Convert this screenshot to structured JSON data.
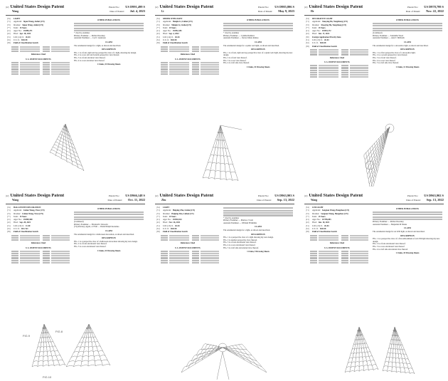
{
  "patents": [
    {
      "kind_label": "United States Design Patent",
      "inventor_surname": "Wang",
      "patent_no_label": "Patent No.:",
      "patent_no": "US D991,499 S",
      "date_label": "Date of Patent:",
      "date": "Jul. 4, 2023",
      "fields": [
        {
          "code": "(54)",
          "key": "",
          "value": "LIGHT"
        },
        {
          "code": "(71)",
          "key": "Applicant:",
          "value": "Sipan Wang, Anhui (CN)"
        },
        {
          "code": "(72)",
          "key": "Inventor:",
          "value": "Sipan Wang, Anhui (CN)"
        },
        {
          "code": "(**)",
          "key": "Term:",
          "value": "15 Years"
        },
        {
          "code": "(21)",
          "key": "Appl. No.:",
          "value": "29/885,371"
        },
        {
          "code": "(22)",
          "key": "Filed:",
          "value": "Apr. 18, 2023"
        },
        {
          "code": "(51)",
          "key": "LOC (14) Cl.",
          "value": "26-04"
        },
        {
          "code": "(52)",
          "key": "U.S. Cl.",
          "value": "D26/28"
        },
        {
          "code": "(58)",
          "key": "",
          "value": "Field of Classification Search"
        }
      ],
      "references_heading": "References Cited",
      "us_docs_heading": "U.S. PATENT DOCUMENTS",
      "other_pubs_heading": "OTHER PUBLICATIONS",
      "examiners": [
        "* cited by examiner",
        "Primary Examiner — Richard Kearney",
        "Assistant Examiner — Cyd C Anderson"
      ],
      "claim_heading": "CLAIM",
      "claim": "The ornamental design for a light, as shown and described.",
      "description_heading": "DESCRIPTION",
      "description": [
        "FIG. 1 is a front, right and top perspective view of a light, showing my design.",
        "FIG. 2 is a rear, left and bottom perspective view thereof.",
        "FIG. 3 is a front elevation view thereof.",
        "FIG. 4 is a rear elevation view thereof."
      ],
      "sheets": "1 Claim, 10 Drawing Sheets",
      "figure_labels": []
    },
    {
      "kind_label": "United States Design Patent",
      "inventor_surname": "Li",
      "patent_no_label": "Patent No.:",
      "patent_no": "US D985,806 S",
      "date_label": "Date of Patent:",
      "date": "May 9, 2023",
      "fields": [
        {
          "code": "(54)",
          "key": "",
          "value": "SPIDER WEB LIGHT"
        },
        {
          "code": "(71)",
          "key": "Applicant:",
          "value": "Meiqin Li, Linhai (CN)"
        },
        {
          "code": "(72)",
          "key": "Inventor:",
          "value": "Meiqin Li, Linhai (CN)"
        },
        {
          "code": "(**)",
          "key": "Term:",
          "value": "15 Years"
        },
        {
          "code": "(21)",
          "key": "Appl. No.:",
          "value": "29/852,183"
        },
        {
          "code": "(22)",
          "key": "Filed:",
          "value": "Sep. 4, 2022"
        },
        {
          "code": "(51)",
          "key": "LOC (14) Cl.",
          "value": "26-04"
        },
        {
          "code": "(52)",
          "key": "U.S. Cl.",
          "value": "D26/28"
        },
        {
          "code": "(58)",
          "key": "",
          "value": "Field of Classification Search"
        }
      ],
      "references_heading": "References Cited",
      "us_docs_heading": "U.S. PATENT DOCUMENTS",
      "other_pubs_heading": "OTHER PUBLICATIONS",
      "examiners": [
        "* cited by examiner",
        "Primary Examiner — Cynthia Ramirez",
        "Assistant Examiner — Xavier Marie Ramos"
      ],
      "claim_heading": "CLAIM",
      "claim": "The ornamental design for a spider web light, as shown and described.",
      "description_heading": "DESCRIPTION",
      "description": [
        "FIG. 1 is a front, right and top perspective view of a spider web light, showing my new design.",
        "FIG. 2 is a front view thereof.",
        "FIG. 3 is a rear view thereof.",
        "FIG. 4 is a left side view thereof."
      ],
      "sheets": "1 Claim, 10 Drawing Sheets",
      "figure_labels": []
    },
    {
      "kind_label": "United States Design Patent",
      "inventor_surname": "He",
      "patent_no_label": "Patent No.:",
      "patent_no": "US D978,799 S",
      "date_label": "Date of Patent:",
      "date": "Nov. 22, 2022",
      "fields": [
        {
          "code": "(54)",
          "key": "",
          "value": "DECORATIVE LIGHT"
        },
        {
          "code": "(71)",
          "key": "Applicant:",
          "value": "Xiaoying He, Yangzhong (CN)"
        },
        {
          "code": "(72)",
          "key": "Inventor:",
          "value": "Xiaoying He, Yangzhong (CN)"
        },
        {
          "code": "(**)",
          "key": "Term:",
          "value": "15 Years"
        },
        {
          "code": "(21)",
          "key": "Appl. No.:",
          "value": "29/843,172"
        },
        {
          "code": "(22)",
          "key": "Filed:",
          "value": "Jun. 17, 2022"
        },
        {
          "code": "(30)",
          "key": "",
          "value": "Foreign Application Priority Data"
        },
        {
          "code": "(51)",
          "key": "LOC (13) Cl.",
          "value": "26-04"
        },
        {
          "code": "(52)",
          "key": "U.S. Cl.",
          "value": "D26/28"
        },
        {
          "code": "(58)",
          "key": "",
          "value": "Field of Classification Search"
        }
      ],
      "references_heading": "References Cited",
      "us_docs_heading": "U.S. PATENT DOCUMENTS",
      "other_pubs_heading": "OTHER PUBLICATIONS",
      "examiners": [
        "(Continued)",
        "Primary Examiner — Samantha Wood",
        "Assistant Examiner — Alan T. Milbrath"
      ],
      "claim_heading": "CLAIM",
      "claim": "The ornamental design for a decorative light, as shown and described.",
      "description_heading": "DESCRIPTION",
      "description": [
        "FIG. 1 is a first perspective view of a decorative light.",
        "FIG. 2 is a second perspective view thereof.",
        "FIG. 3 is a front view thereof.",
        "FIG. 4 is a rear view thereof.",
        "FIG. 5 is a left side view thereof."
      ],
      "sheets": "1 Claim, 12 Drawing Sheets",
      "figure_labels": []
    },
    {
      "kind_label": "United States Design Patent",
      "inventor_surname": "Wang",
      "patent_no_label": "Patent No.:",
      "patent_no": "US D966,148 S",
      "date_label": "Date of Patent:",
      "date": "Oct. 11, 2022",
      "fields": [
        {
          "code": "(54)",
          "key": "",
          "value": "HALLOWEEN DECORATION"
        },
        {
          "code": "(71)",
          "key": "Applicant:",
          "value": "Linlan Wang, Yiwu (CN)"
        },
        {
          "code": "(72)",
          "key": "Inventor:",
          "value": "Linlan Wang, Yiwu (CN)"
        },
        {
          "code": "(**)",
          "key": "Term:",
          "value": "15 Years"
        },
        {
          "code": "(21)",
          "key": "Appl. No.:",
          "value": "29/809,580"
        },
        {
          "code": "(22)",
          "key": "Filed:",
          "value": "Sep. 28, 2021"
        },
        {
          "code": "(51)",
          "key": "LOC (13) Cl.",
          "value": "11-00"
        },
        {
          "code": "(52)",
          "key": "U.S. Cl.",
          "value": "D11/121"
        },
        {
          "code": "(58)",
          "key": "",
          "value": "Field of Classification Search"
        }
      ],
      "references_heading": "References Cited",
      "us_docs_heading": "U.S. PATENT DOCUMENTS",
      "other_pubs_heading": "OTHER PUBLICATIONS",
      "examiners": [
        "(Continued)",
        "Primary Examiner — Elizabeth J Oswecki",
        "(74) Attorney, Agent, or Firm — Daniel Ralph Kostenko"
      ],
      "claim_heading": "CLAIM",
      "claim": "The ornamental design for a halloween decoration, as shown and described.",
      "description_heading": "DESCRIPTION",
      "description": [
        "FIG. 1 is a perspective view of a halloween decoration showing my new design.",
        "FIG. 2 is a front elevational view thereof.",
        "FIG. 3 is a rear elevational view thereof."
      ],
      "sheets": "1 Claim, 10 Drawing Sheets",
      "figure_labels": [
        "FIG.8",
        "FIG.9",
        "FIG.10"
      ]
    },
    {
      "kind_label": "United States Design Patent",
      "inventor_surname": "Zhu",
      "patent_no_label": "Patent No.:",
      "patent_no": "US D963,903 S",
      "date_label": "Date of Patent:",
      "date": "Sep. 13, 2022",
      "fields": [
        {
          "code": "(54)",
          "key": "",
          "value": "LIGHT"
        },
        {
          "code": "(71)",
          "key": "Applicant:",
          "value": "Haiping Zhu, Linhai (CN)"
        },
        {
          "code": "(72)",
          "key": "Inventor:",
          "value": "Haiping Zhu, Linhai (CN)"
        },
        {
          "code": "(**)",
          "key": "Term:",
          "value": "15 Years"
        },
        {
          "code": "(21)",
          "key": "Appl. No.:",
          "value": "29/816,924"
        },
        {
          "code": "(22)",
          "key": "Filed:",
          "value": "Nov. 26, 2021"
        },
        {
          "code": "(51)",
          "key": "LOC (13) Cl.",
          "value": "26-04"
        },
        {
          "code": "(52)",
          "key": "U.S. Cl.",
          "value": "D26/28"
        },
        {
          "code": "(58)",
          "key": "",
          "value": "Field of Classification Search"
        }
      ],
      "references_heading": "References Cited",
      "us_docs_heading": "U.S. PATENT DOCUMENTS",
      "other_pubs_heading": "",
      "examiners": [
        "* cited by examiner",
        "Primary Examiner — Marissa J Cash",
        "Assistant Examiner — William B Mullins"
      ],
      "claim_heading": "CLAIM",
      "claim": "The ornamental design for a light, as shown and described.",
      "description_heading": "DESCRIPTION",
      "description": [
        "FIG. 1 is a perspective view of a light showing my new design.",
        "FIG. 2 is another perspective view thereof.",
        "FIG. 3 is a front elevational view thereof.",
        "FIG. 4 is a rear elevational view thereof.",
        "FIG. 5 is a left side elevational view thereof."
      ],
      "sheets": "1 Claim, 9 Drawing Sheets",
      "figure_labels": []
    },
    {
      "kind_label": "United States Design Patent",
      "inventor_surname": "Wang",
      "patent_no_label": "Patent No.:",
      "patent_no": "US D963,902 S",
      "date_label": "Date of Patent:",
      "date": "Sep. 13, 2022",
      "fields": [
        {
          "code": "(54)",
          "key": "",
          "value": "LED LIGHT"
        },
        {
          "code": "(71)",
          "key": "Applicant:",
          "value": "Songnan Wang, Hangzhou (CN)"
        },
        {
          "code": "(72)",
          "key": "Inventor:",
          "value": "Songnan Wang, Hangzhou (CN)"
        },
        {
          "code": "(**)",
          "key": "Term:",
          "value": "15 Years"
        },
        {
          "code": "(21)",
          "key": "Appl. No.:",
          "value": "29/785,083"
        },
        {
          "code": "(22)",
          "key": "Filed:",
          "value": "Jun. 10, 2021"
        },
        {
          "code": "(51)",
          "key": "LOC (13) Cl.",
          "value": "26-04"
        },
        {
          "code": "(52)",
          "key": "U.S. Cl.",
          "value": "D26/28"
        },
        {
          "code": "(58)",
          "key": "",
          "value": "Field of Classification Search"
        }
      ],
      "references_heading": "References Cited",
      "us_docs_heading": "U.S. PATENT DOCUMENTS",
      "other_pubs_heading": "OTHER PUBLICATIONS",
      "examiners": [
        "Primary Examiner — Richard Kearney",
        "Assistant Examiner — Benjamin M Weeks"
      ],
      "claim_heading": "CLAIM",
      "claim": "The ornamental design for an LED light, as shown and described.",
      "description_heading": "DESCRIPTION",
      "description": [
        "FIG. 1 is a perspective view of a first embodiment of an LED light showing my new design.",
        "FIG. 2 is a front elevational view thereof.",
        "FIG. 3 is a rear elevational view thereof.",
        "FIG. 4 is a left side elevational view thereof."
      ],
      "sheets": "1 Claim, 18 Drawing Sheets",
      "figure_labels": []
    }
  ]
}
